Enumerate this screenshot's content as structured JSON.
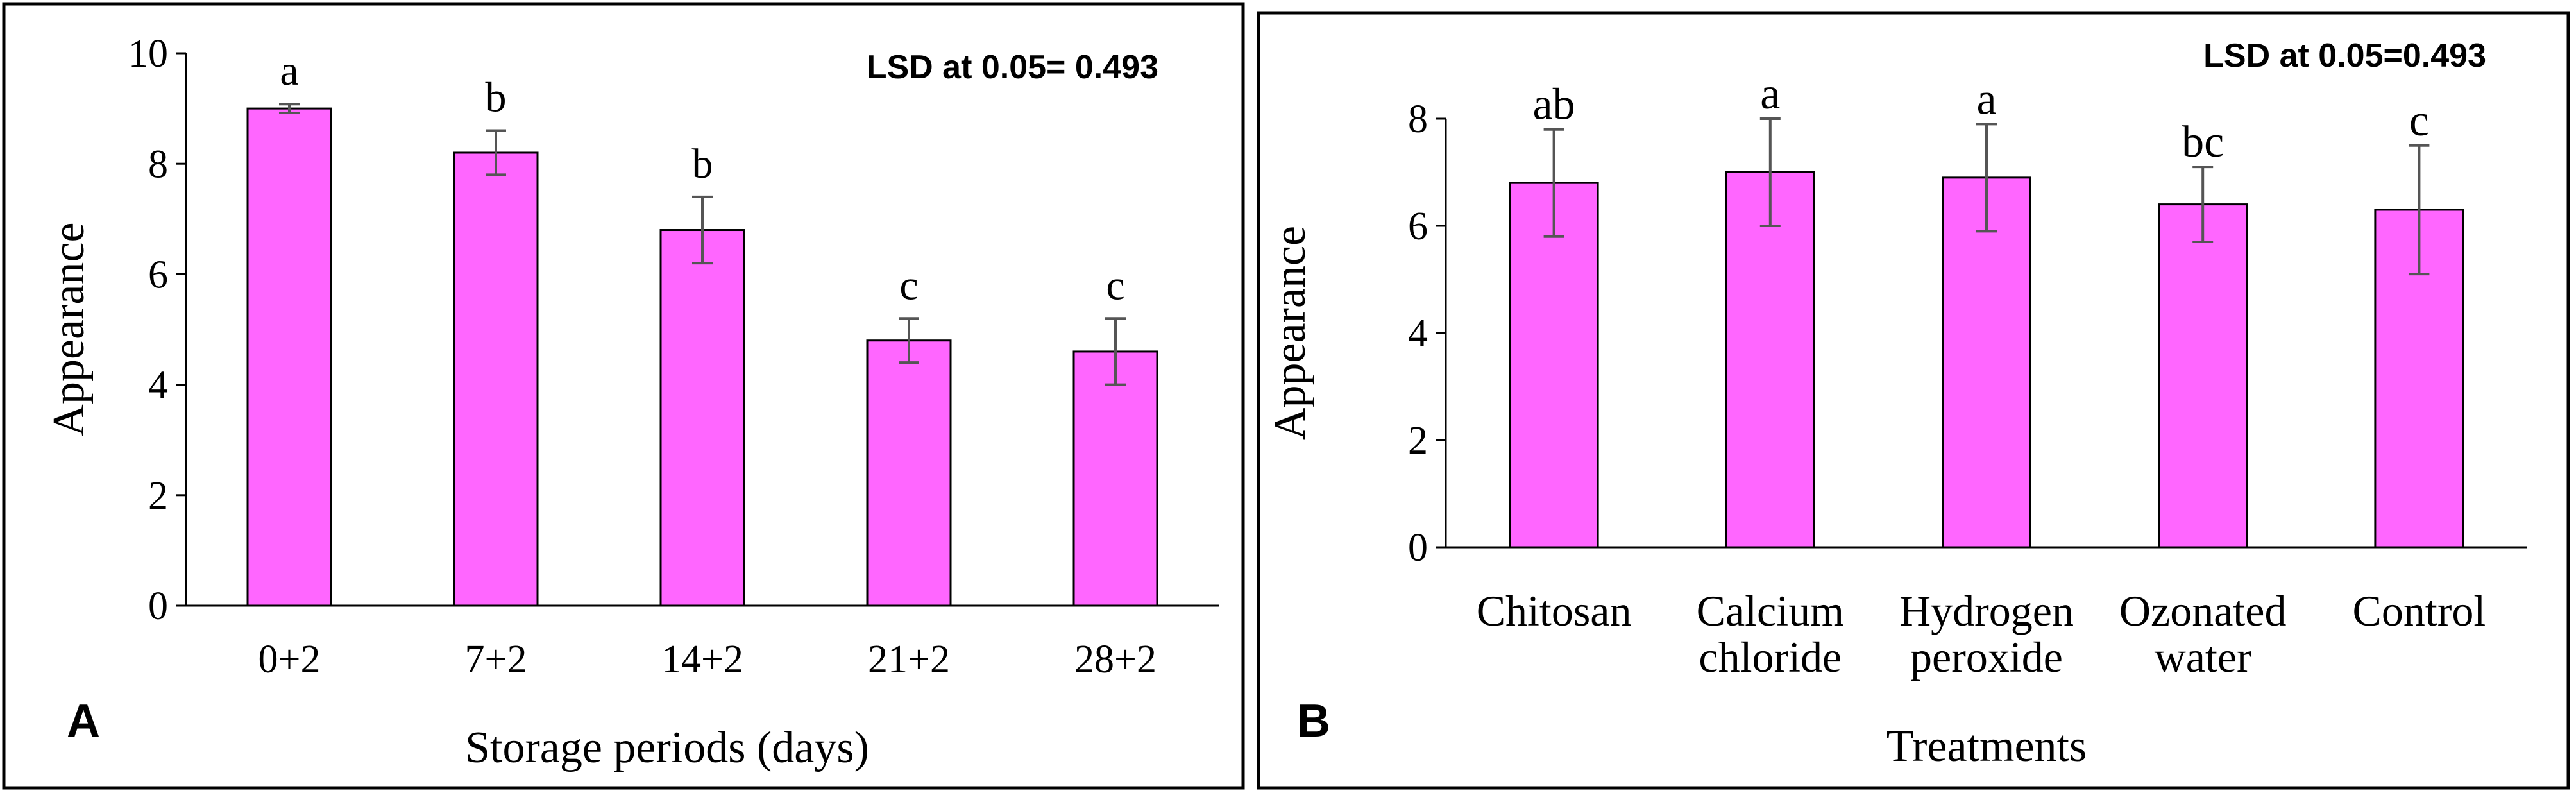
{
  "chart_data": [
    {
      "panel": "A",
      "type": "bar",
      "title": "",
      "annotation": "LSD at 0.05= 0.493",
      "xlabel": "Storage periods (days)",
      "ylabel": "Appearance",
      "ylim": [
        0,
        10
      ],
      "yticks": [
        0,
        2,
        4,
        6,
        8,
        10
      ],
      "grid": false,
      "categories": [
        [
          "0+2"
        ],
        [
          "7+2"
        ],
        [
          "14+2"
        ],
        [
          "21+2"
        ],
        [
          "28+2"
        ]
      ],
      "values": [
        9.0,
        8.2,
        6.8,
        4.8,
        4.6
      ],
      "errors": [
        0.08,
        0.4,
        0.6,
        0.4,
        0.6
      ],
      "significance": [
        "a",
        "b",
        "b",
        "c",
        "c"
      ],
      "bar_color": "#ff66ff"
    },
    {
      "panel": "B",
      "type": "bar",
      "title": "",
      "annotation": "LSD at 0.05=0.493",
      "xlabel": "Treatments",
      "ylabel": "Appearance",
      "ylim": [
        0,
        8
      ],
      "yticks": [
        0,
        2,
        4,
        6,
        8
      ],
      "grid": false,
      "categories": [
        [
          "Chitosan"
        ],
        [
          "Calcium",
          "chloride"
        ],
        [
          "Hydrogen",
          "peroxide"
        ],
        [
          "Ozonated",
          "water"
        ],
        [
          "Control"
        ]
      ],
      "values": [
        6.8,
        7.0,
        6.9,
        6.4,
        6.3
      ],
      "errors": [
        1.0,
        1.0,
        1.0,
        0.7,
        1.2
      ],
      "significance": [
        "ab",
        "a",
        "a",
        "bc",
        "c"
      ],
      "bar_color": "#ff66ff"
    }
  ]
}
